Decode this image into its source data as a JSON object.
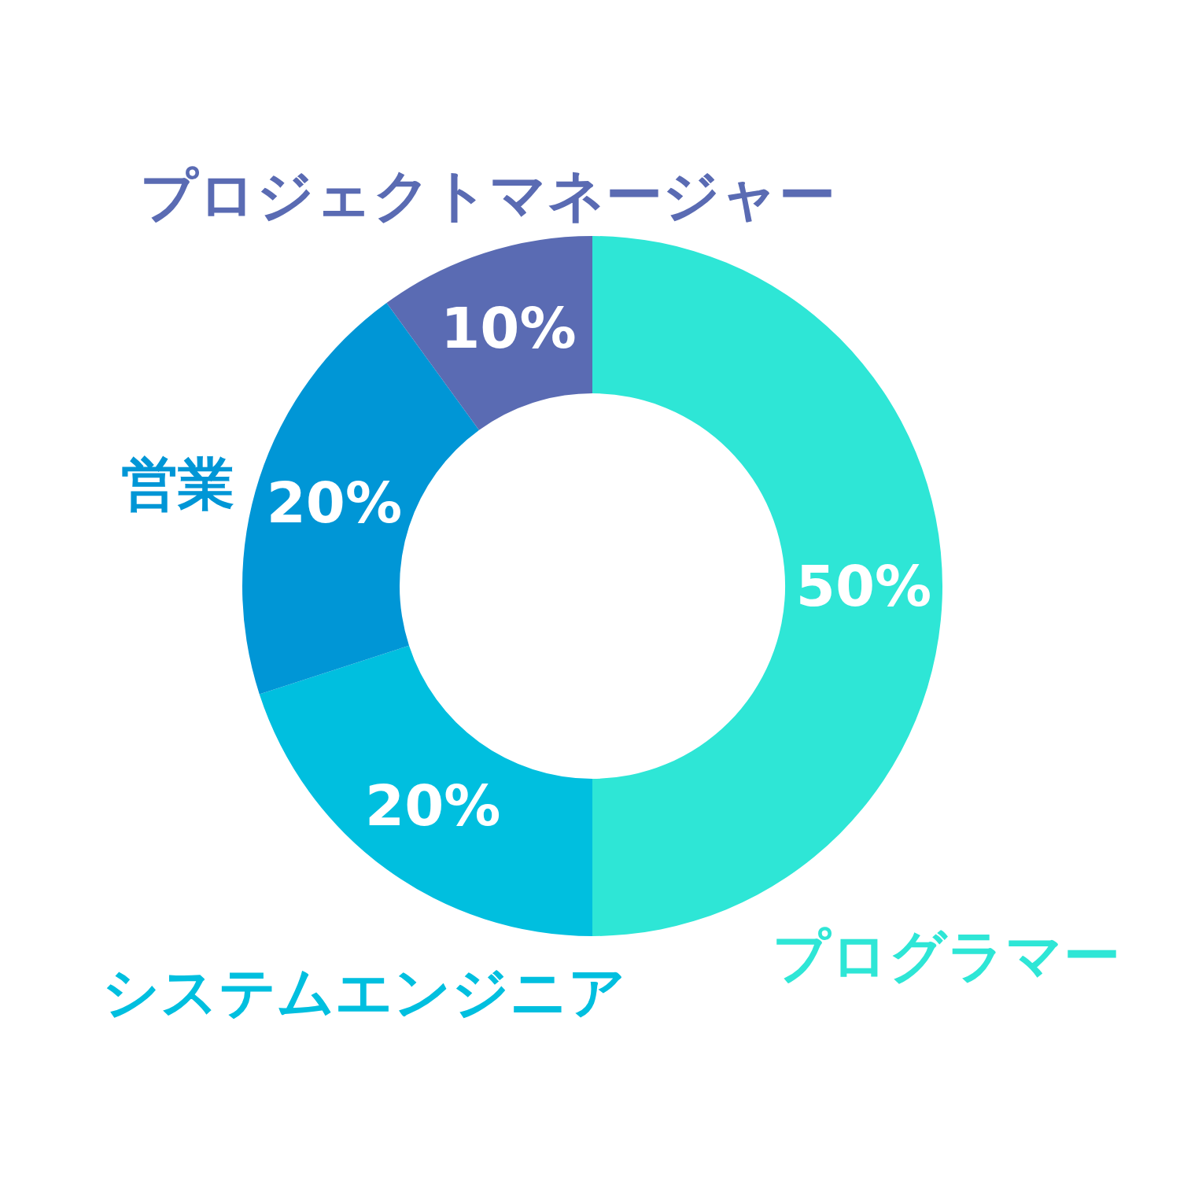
{
  "chart_data": {
    "type": "donut",
    "categories": [
      "プログラマー",
      "システムエンジニア",
      "営業",
      "プロジェクトマネージャー"
    ],
    "values": [
      50,
      20,
      20,
      10
    ],
    "value_labels": [
      "50%",
      "20%",
      "20%",
      "10%"
    ],
    "colors": [
      "#2ee6d6",
      "#00bfdf",
      "#0096d6",
      "#5a6bb3"
    ]
  }
}
